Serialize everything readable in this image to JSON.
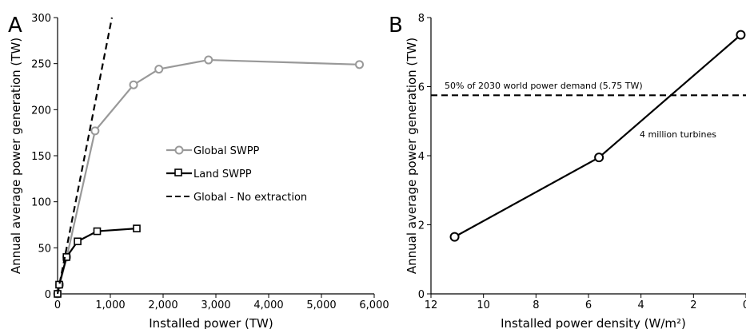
{
  "chart_data": [
    {
      "panel_label": "A",
      "type": "line",
      "xlabel": "Installed power (TW)",
      "ylabel": "Annual average power generation (TW)",
      "xlim": [
        0,
        6000
      ],
      "ylim": [
        0,
        300
      ],
      "xticks": [
        0,
        1000,
        2000,
        3000,
        4000,
        5000,
        6000
      ],
      "xtick_labels": [
        "0",
        "1,000",
        "2,000",
        "3,000",
        "4,000",
        "5,000",
        "6,000"
      ],
      "yticks": [
        0,
        50,
        100,
        150,
        200,
        250,
        300
      ],
      "ytick_labels": [
        "0",
        "50",
        "100",
        "150",
        "200",
        "250",
        "300"
      ],
      "legend_position": "center-right",
      "series": [
        {
          "name": "Global SWPP",
          "color": "#999999",
          "marker": "circle",
          "line": "solid",
          "x": [
            0,
            40,
            175,
            710,
            1440,
            1920,
            2860,
            5720
          ],
          "y": [
            0,
            10,
            40,
            177,
            227,
            244,
            254,
            249
          ]
        },
        {
          "name": "Land SWPP",
          "color": "#000000",
          "marker": "square",
          "line": "solid",
          "x": [
            0,
            30,
            170,
            380,
            750,
            1500
          ],
          "y": [
            0,
            10,
            40,
            57,
            68,
            71
          ]
        },
        {
          "name": "Global - No extraction",
          "color": "#000000",
          "marker": "none",
          "line": "dashed",
          "x": [
            0,
            1030
          ],
          "y": [
            0,
            300
          ]
        }
      ]
    },
    {
      "panel_label": "B",
      "type": "line",
      "xlabel": "Installed power density (W/m²)",
      "ylabel": "Annual average power generation (TW)",
      "xlim": [
        12,
        0
      ],
      "ylim": [
        0,
        8
      ],
      "xticks": [
        12,
        10,
        8,
        6,
        4,
        2,
        0
      ],
      "xtick_labels": [
        "12",
        "10",
        "8",
        "6",
        "4",
        "2",
        "0"
      ],
      "yticks": [
        0,
        2,
        4,
        6,
        8
      ],
      "ytick_labels": [
        "0",
        "2",
        "4",
        "6",
        "8"
      ],
      "hline": {
        "y": 5.75,
        "label": "50% of 2030 world power demand (5.75 TW)",
        "style": "dashed"
      },
      "annotation": "4 million turbines",
      "series": [
        {
          "color": "#000000",
          "marker": "circle",
          "line": "solid",
          "x": [
            11.1,
            5.6,
            0.2
          ],
          "y": [
            1.65,
            3.95,
            7.5
          ]
        }
      ]
    }
  ]
}
